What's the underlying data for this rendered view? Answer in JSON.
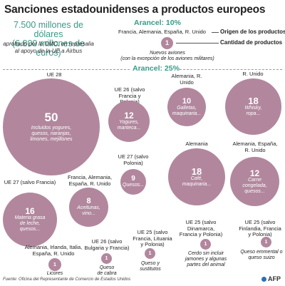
{
  "title": "Sanciones estadounidenses a productos europeos",
  "headline": {
    "amount_usd": "7.500 millones de dólares",
    "amount_eur": "(6.800 millones de euros)",
    "note": "aprobado por la OMC, en represalia al apoyo de la UE a Airbus"
  },
  "tariff_10": {
    "label": "Arancel: 10%"
  },
  "tariff_25": {
    "label": "Arancel: 25%"
  },
  "legend": {
    "countries": "Francia, Alemania, España, R. Unido",
    "origin_label": "Origen de los productos",
    "count": "1",
    "count_label": "Cantidad de productos",
    "product": "Nuevos aviones",
    "product_note": "(con la excepción de los aviones militares)"
  },
  "bubbles": [
    {
      "count": "50",
      "countries": "UE 28",
      "products": "Incluidos yogures, quesos, naranjas, limones, mejillones"
    },
    {
      "count": "12",
      "countries": "UE 26 (salvo Francia y Polonia)",
      "products": "Yogures, manteca..."
    },
    {
      "count": "10",
      "countries": "Alemania, R. Unido",
      "products": "Galletas, maquinaria..."
    },
    {
      "count": "18",
      "countries": "R. Unido",
      "products": "Whisky, ropa..."
    },
    {
      "count": "9",
      "countries": "UE 27 (salvo Polonia)",
      "products": "Quesos..."
    },
    {
      "count": "18",
      "countries": "Alemania",
      "products": "Café, maquinaria..."
    },
    {
      "count": "12",
      "countries": "Alemania, España, R. Unido",
      "products": "Carne congelada, quesos..."
    },
    {
      "count": "16",
      "countries": "UE 27 (salvo Francia)",
      "products": "Materia grasa de leche, quesos..."
    },
    {
      "count": "8",
      "countries": "Francia, Alemania, España, R. Unido",
      "products": "Aceitunas, vino..."
    },
    {
      "count": "1",
      "countries": "UE 25 (salvo Dinamarca, Francia y Polonia)",
      "products": "Cerdo sin incluir jamones y algunas partes del animal"
    },
    {
      "count": "1",
      "countries": "UE 25 (salvo Finlandia, Francia y Polonia)",
      "products": "Queso emmental o queso suizo"
    },
    {
      "count": "1",
      "countries": "Alemania, Irlanda, Italia, España, R. Unido",
      "products": "Licores"
    },
    {
      "count": "1",
      "countries": "UE 26 (salvo Bulgaria y Francia)",
      "products": "Queso de cabra"
    },
    {
      "count": "1",
      "countries": "UE 25 (salvo Francia, Lituania y Polonia)",
      "products": "Queso y sustitutos"
    }
  ],
  "footer": {
    "source": "Fuente: Oficina del Representante de Comercio de Estados Unidos",
    "credit": "AFP"
  },
  "colors": {
    "bubble": "#b2879e",
    "accent": "#3a9a87",
    "afp_logo": "#2d6fb5"
  }
}
